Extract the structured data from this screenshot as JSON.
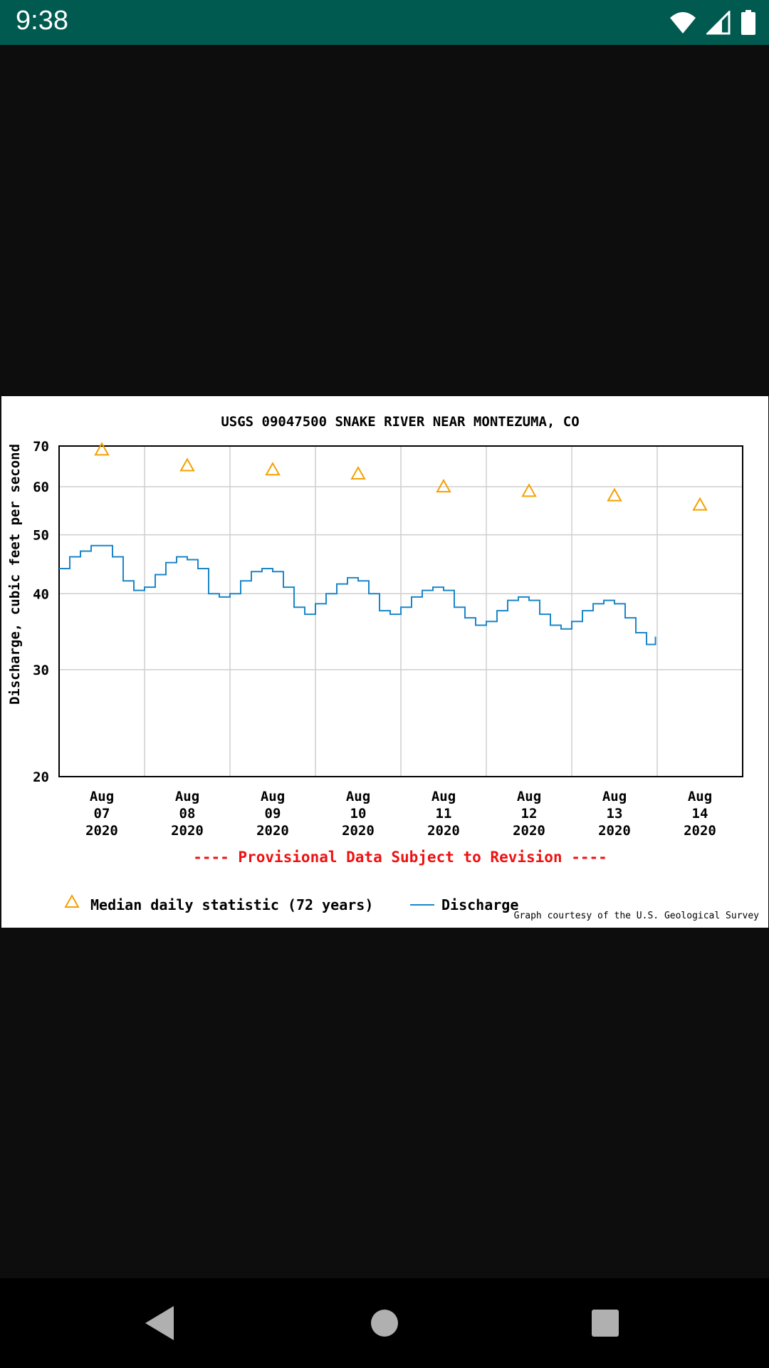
{
  "status_bar": {
    "time": "9:38",
    "icons": [
      "wifi-icon",
      "cell-signal-icon",
      "battery-icon"
    ]
  },
  "nav_bar": {
    "buttons": [
      "back-icon",
      "home-icon",
      "recents-icon"
    ]
  },
  "chart_data": {
    "type": "line",
    "title": "USGS 09047500 SNAKE RIVER NEAR MONTEZUMA, CO",
    "ylabel": "Discharge, cubic feet per second",
    "y_scale": "log",
    "ylim": [
      20,
      70
    ],
    "y_ticks": [
      20,
      30,
      40,
      50,
      60,
      70
    ],
    "xlim": [
      "2020-08-07 00:00",
      "2020-08-15 00:00"
    ],
    "x_ticks": [
      {
        "date": "2020-08-07",
        "label": [
          "Aug",
          "07",
          "2020"
        ]
      },
      {
        "date": "2020-08-08",
        "label": [
          "Aug",
          "08",
          "2020"
        ]
      },
      {
        "date": "2020-08-09",
        "label": [
          "Aug",
          "09",
          "2020"
        ]
      },
      {
        "date": "2020-08-10",
        "label": [
          "Aug",
          "10",
          "2020"
        ]
      },
      {
        "date": "2020-08-11",
        "label": [
          "Aug",
          "11",
          "2020"
        ]
      },
      {
        "date": "2020-08-12",
        "label": [
          "Aug",
          "12",
          "2020"
        ]
      },
      {
        "date": "2020-08-13",
        "label": [
          "Aug",
          "13",
          "2020"
        ]
      },
      {
        "date": "2020-08-14",
        "label": [
          "Aug",
          "14",
          "2020"
        ]
      }
    ],
    "grid": true,
    "series": [
      {
        "name": "Median daily statistic (72 years)",
        "kind": "marker",
        "marker": "triangle",
        "color": "#f5a000",
        "x": [
          "2020-08-07 12:00",
          "2020-08-08 12:00",
          "2020-08-09 12:00",
          "2020-08-10 12:00",
          "2020-08-11 12:00",
          "2020-08-12 12:00",
          "2020-08-13 12:00",
          "2020-08-14 12:00"
        ],
        "values": [
          69,
          65,
          64,
          63,
          60,
          59,
          58,
          56
        ]
      },
      {
        "name": "Discharge",
        "kind": "line",
        "color": "#1a86c8",
        "x": [
          "2020-08-07 00:00",
          "2020-08-07 03:00",
          "2020-08-07 06:00",
          "2020-08-07 09:00",
          "2020-08-07 12:00",
          "2020-08-07 15:00",
          "2020-08-07 18:00",
          "2020-08-07 21:00",
          "2020-08-08 00:00",
          "2020-08-08 03:00",
          "2020-08-08 06:00",
          "2020-08-08 09:00",
          "2020-08-08 12:00",
          "2020-08-08 15:00",
          "2020-08-08 18:00",
          "2020-08-08 21:00",
          "2020-08-09 00:00",
          "2020-08-09 03:00",
          "2020-08-09 06:00",
          "2020-08-09 09:00",
          "2020-08-09 12:00",
          "2020-08-09 15:00",
          "2020-08-09 18:00",
          "2020-08-09 21:00",
          "2020-08-10 00:00",
          "2020-08-10 03:00",
          "2020-08-10 06:00",
          "2020-08-10 09:00",
          "2020-08-10 12:00",
          "2020-08-10 15:00",
          "2020-08-10 18:00",
          "2020-08-10 21:00",
          "2020-08-11 00:00",
          "2020-08-11 03:00",
          "2020-08-11 06:00",
          "2020-08-11 09:00",
          "2020-08-11 12:00",
          "2020-08-11 15:00",
          "2020-08-11 18:00",
          "2020-08-11 21:00",
          "2020-08-12 00:00",
          "2020-08-12 03:00",
          "2020-08-12 06:00",
          "2020-08-12 09:00",
          "2020-08-12 12:00",
          "2020-08-12 15:00",
          "2020-08-12 18:00",
          "2020-08-12 21:00",
          "2020-08-13 00:00",
          "2020-08-13 03:00",
          "2020-08-13 06:00",
          "2020-08-13 09:00",
          "2020-08-13 12:00",
          "2020-08-13 15:00",
          "2020-08-13 18:00",
          "2020-08-13 21:00",
          "2020-08-13 22:30",
          "2020-08-13 23:30"
        ],
        "values": [
          44,
          46,
          47,
          48,
          48,
          46,
          42,
          40.5,
          41,
          43,
          45,
          46,
          45.5,
          44,
          40,
          39.5,
          40,
          42,
          43.5,
          44,
          43.5,
          41,
          38,
          37,
          38.5,
          40,
          41.5,
          42.5,
          42,
          40,
          37.5,
          37,
          38,
          39.5,
          40.5,
          41,
          40.5,
          38,
          36.5,
          35.5,
          36,
          37.5,
          39,
          39.5,
          39,
          37,
          35.5,
          35,
          36,
          37.5,
          38.5,
          39,
          38.5,
          36.5,
          34.5,
          33,
          33,
          34
        ]
      }
    ],
    "legend_position": "bottom-left",
    "annotation": "---- Provisional Data Subject to Revision ----",
    "annotation_color": "#ee1111",
    "credit": "Graph courtesy of the U.S. Geological Survey"
  }
}
